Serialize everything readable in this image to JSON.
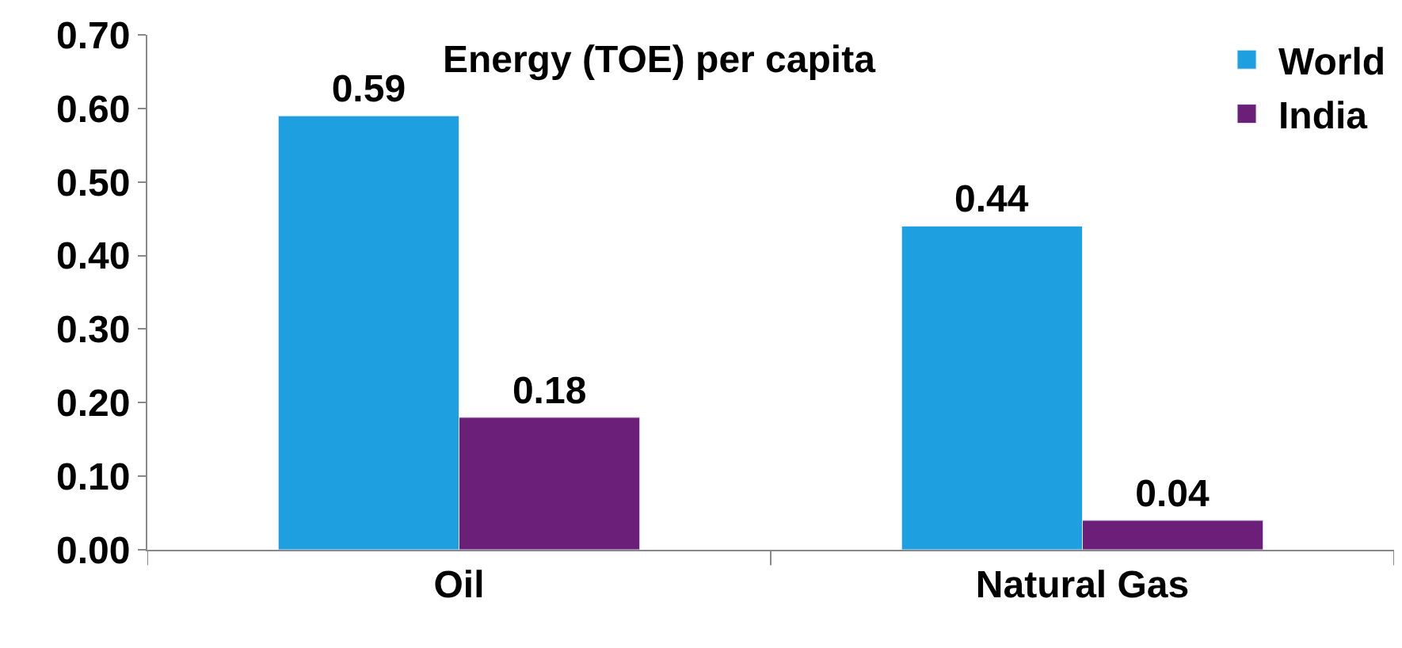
{
  "chart_data": {
    "type": "bar",
    "title": "Energy (TOE) per capita",
    "categories": [
      "Oil",
      "Natural Gas"
    ],
    "series": [
      {
        "name": "World",
        "color": "#1ea0e0",
        "values": [
          0.59,
          0.44
        ]
      },
      {
        "name": "India",
        "color": "#6b1f78",
        "values": [
          0.18,
          0.04
        ]
      }
    ],
    "ylim": [
      0,
      0.7
    ],
    "yticks": [
      "0.00",
      "0.10",
      "0.20",
      "0.30",
      "0.40",
      "0.50",
      "0.60",
      "0.70"
    ],
    "data_labels": true,
    "legend": "top right"
  }
}
